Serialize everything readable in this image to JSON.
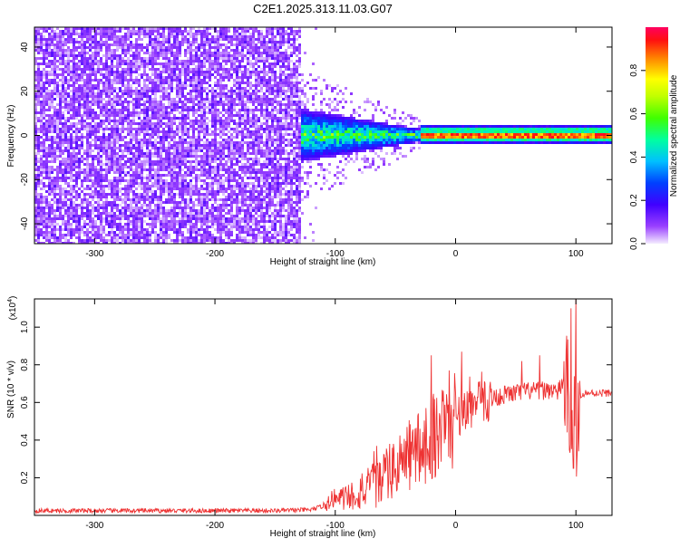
{
  "title": "C2E1.2025.313.11.03.G07",
  "chart_data": [
    {
      "type": "heatmap",
      "xlabel": "Height of straight line (km)",
      "ylabel": "Frequency (Hz)",
      "xlim": [
        -350,
        130
      ],
      "ylim": [
        -49,
        49
      ],
      "xticks": [
        -300,
        -200,
        -100,
        0,
        100
      ],
      "yticks": [
        -40,
        -20,
        0,
        20,
        40
      ],
      "colorbar": {
        "label": "Normalized spectral amplitude",
        "range": [
          0,
          1
        ],
        "ticks": [
          "0.0",
          "0.2",
          "0.4",
          "0.6",
          "0.8"
        ],
        "tick_values": [
          0.0,
          0.2,
          0.4,
          0.6,
          0.8
        ],
        "colors": [
          "#e8d8f8",
          "#8000ff",
          "#0000ff",
          "#00c0ff",
          "#00ff80",
          "#80ff00",
          "#ffff00",
          "#ff8000",
          "#ff0000",
          "#ff0080"
        ]
      },
      "regions": [
        {
          "name": "noise",
          "x": [
            -350,
            -125
          ],
          "freq": [
            -49,
            49
          ],
          "amplitude": [
            0.0,
            0.12
          ]
        },
        {
          "name": "transition",
          "x": [
            -140,
            -125
          ],
          "freq": [
            -49,
            49
          ],
          "amplitude": [
            0.0,
            0.08
          ]
        },
        {
          "name": "signal-onset",
          "x": [
            -130,
            -30
          ],
          "freq_halfwidth": [
            12,
            3
          ],
          "amplitude": [
            0.05,
            0.5
          ]
        },
        {
          "name": "carrier",
          "x": [
            -30,
            130
          ],
          "freq_halfwidth": 3,
          "amplitude": [
            0.3,
            0.95
          ]
        }
      ]
    },
    {
      "type": "line",
      "xlabel": "Height of straight line (km)",
      "ylabel": "SNR (10 * v/v)",
      "yscale_label": "(x10",
      "yscale_exp": "4",
      "xlim": [
        -350,
        130
      ],
      "ylim": [
        0,
        1.15
      ],
      "xticks": [
        -300,
        -200,
        -100,
        0,
        100
      ],
      "yticks": [
        "0.2",
        "0.4",
        "0.6",
        "0.8",
        "1.0"
      ],
      "ytick_values": [
        0.2,
        0.4,
        0.6,
        0.8,
        1.0
      ],
      "color": "#ee3333",
      "x": [
        -350,
        -300,
        -250,
        -200,
        -150,
        -120,
        -110,
        -100,
        -90,
        -80,
        -70,
        -60,
        -50,
        -40,
        -30,
        -20,
        -10,
        0,
        10,
        20,
        30,
        40,
        50,
        60,
        70,
        80,
        85,
        90,
        95,
        100,
        105,
        110,
        120,
        130
      ],
      "y": [
        0.025,
        0.025,
        0.025,
        0.025,
        0.025,
        0.03,
        0.05,
        0.08,
        0.1,
        0.12,
        0.15,
        0.2,
        0.25,
        0.3,
        0.36,
        0.42,
        0.48,
        0.53,
        0.57,
        0.6,
        0.62,
        0.64,
        0.65,
        0.66,
        0.66,
        0.67,
        0.65,
        0.72,
        0.6,
        0.45,
        0.65,
        0.65,
        0.65,
        0.65
      ],
      "spikes": [
        {
          "x": 96,
          "y": 1.1
        },
        {
          "x": 100,
          "y": 1.15
        },
        {
          "x": 98,
          "y": 0.25
        },
        {
          "x": 101,
          "y": 0.3
        },
        {
          "x": -20,
          "y": 0.85
        },
        {
          "x": 5,
          "y": 0.87
        },
        {
          "x": 55,
          "y": 0.82
        },
        {
          "x": 70,
          "y": 0.85
        }
      ]
    }
  ]
}
